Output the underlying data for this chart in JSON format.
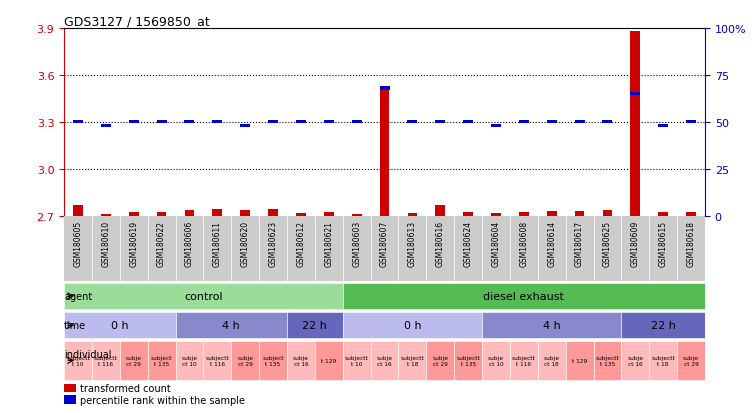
{
  "title": "GDS3127 / 1569850_at",
  "samples": [
    "GSM180605",
    "GSM180610",
    "GSM180619",
    "GSM180622",
    "GSM180606",
    "GSM180611",
    "GSM180620",
    "GSM180623",
    "GSM180612",
    "GSM180621",
    "GSM180603",
    "GSM180607",
    "GSM180613",
    "GSM180616",
    "GSM180624",
    "GSM180604",
    "GSM180608",
    "GSM180614",
    "GSM180617",
    "GSM180625",
    "GSM180609",
    "GSM180615",
    "GSM180618"
  ],
  "transformed_count": [
    2.775,
    2.715,
    2.73,
    2.73,
    2.74,
    2.745,
    2.74,
    2.745,
    2.72,
    2.725,
    2.715,
    3.52,
    2.72,
    2.77,
    2.725,
    2.72,
    2.73,
    2.735,
    2.735,
    2.74,
    3.88,
    2.725,
    2.73
  ],
  "percentile_rank": [
    50,
    48,
    50,
    50,
    50,
    50,
    48,
    50,
    50,
    50,
    50,
    68,
    50,
    50,
    50,
    48,
    50,
    50,
    50,
    50,
    65,
    48,
    50
  ],
  "ylim_left": [
    2.7,
    3.9
  ],
  "ylim_right": [
    0,
    100
  ],
  "yticks_left": [
    2.7,
    3.0,
    3.3,
    3.6,
    3.9
  ],
  "yticks_right": [
    0,
    25,
    50,
    75,
    100
  ],
  "agent_groups": [
    {
      "label": "control",
      "start": 0,
      "end": 9,
      "color": "#99DD99"
    },
    {
      "label": "diesel exhaust",
      "start": 10,
      "end": 22,
      "color": "#55BB55"
    }
  ],
  "time_groups": [
    {
      "label": "0 h",
      "start": 0,
      "end": 3,
      "color": "#BBBBEE"
    },
    {
      "label": "4 h",
      "start": 4,
      "end": 7,
      "color": "#8888CC"
    },
    {
      "label": "22 h",
      "start": 8,
      "end": 9,
      "color": "#6666BB"
    },
    {
      "label": "0 h",
      "start": 10,
      "end": 14,
      "color": "#BBBBEE"
    },
    {
      "label": "4 h",
      "start": 15,
      "end": 19,
      "color": "#8888CC"
    },
    {
      "label": "22 h",
      "start": 20,
      "end": 22,
      "color": "#6666BB"
    }
  ],
  "indiv_labels": [
    "subjectt 10",
    "subjectt 116",
    "subjec t29",
    "subject t135",
    "subje ct10",
    "subjectt 116",
    "subje ct29",
    "subject t135",
    "subje ct16",
    "t 129",
    "subjectt 10",
    "subje ct16",
    "subjectt 18",
    "subje ct29",
    "subjectt 135",
    "subje ct10",
    "subjectt 116",
    "subje ct18",
    "t 129",
    "subjectt 135",
    "subje ct16",
    "subjectt 18",
    "subje ct29"
  ],
  "indiv_colors": [
    "#FFBBBB",
    "#FFBBBB",
    "#FF9999",
    "#FF9999",
    "#FFBBBB",
    "#FFBBBB",
    "#FF9999",
    "#FF9999",
    "#FFBBBB",
    "#FF9999",
    "#FFBBBB",
    "#FFBBBB",
    "#FFBBBB",
    "#FF9999",
    "#FF9999",
    "#FFBBBB",
    "#FFBBBB",
    "#FFBBBB",
    "#FF9999",
    "#FF9999",
    "#FFBBBB",
    "#FFBBBB",
    "#FF9999"
  ],
  "bar_color": "#CC0000",
  "dot_color": "#0000CC",
  "background_color": "#FFFFFF",
  "left_axis_color": "#CC0000",
  "right_axis_color": "#0000CC",
  "label_row_bg": "#CCCCCC"
}
